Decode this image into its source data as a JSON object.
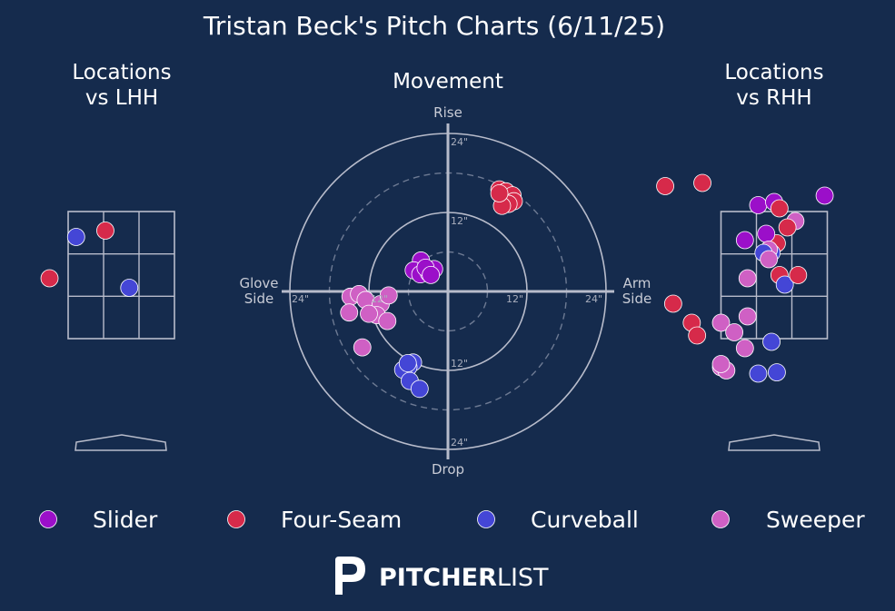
{
  "title": "Tristan Beck's Pitch Charts (6/11/25)",
  "colors": {
    "background": "#152b4d",
    "slider": "#9b0fc9",
    "four_seam": "#d62a4a",
    "curveball": "#4446d6",
    "sweeper": "#cf60c4",
    "line": "#b8bccb"
  },
  "panels": {
    "lhh": {
      "title_line1": "Locations",
      "title_line2": "vs LHH"
    },
    "movement": {
      "title": "Movement"
    },
    "rhh": {
      "title_line1": "Locations",
      "title_line2": "vs RHH"
    }
  },
  "legend": [
    {
      "name": "Slider",
      "color": "#9b0fc9"
    },
    {
      "name": "Four-Seam",
      "color": "#d62a4a"
    },
    {
      "name": "Curveball",
      "color": "#4446d6"
    },
    {
      "name": "Sweeper",
      "color": "#cf60c4"
    }
  ],
  "logo": {
    "bold": "PITCHER",
    "light": "LIST",
    "icon": "p-logo-icon"
  },
  "chart_data": [
    {
      "type": "scatter",
      "name": "Locations vs LHH",
      "title": "Locations vs LHH",
      "xlim": [
        -2.1,
        2.1
      ],
      "ylim": [
        0.3,
        4.75
      ],
      "strike_zone": {
        "x": [
          -1.0,
          1.0
        ],
        "y": [
          1.5,
          3.5
        ]
      },
      "grid": true,
      "points": [
        {
          "pitch": "Four-Seam",
          "x": -0.3,
          "y": 3.2
        },
        {
          "pitch": "Curveball",
          "x": -0.85,
          "y": 3.1
        },
        {
          "pitch": "Four-Seam",
          "x": -1.35,
          "y": 2.45
        },
        {
          "pitch": "Curveball",
          "x": 0.15,
          "y": 2.3
        }
      ]
    },
    {
      "type": "scatter",
      "name": "Movement",
      "title": "Movement",
      "axis_labels": {
        "top": "Rise",
        "bottom": "Drop",
        "left_line1": "Glove",
        "left_line2": "Side",
        "right_line1": "Arm",
        "right_line2": "Side"
      },
      "ring_labels": {
        "top_outer": "24\"",
        "top_inner": "12\"",
        "bottom_inner": "12\"",
        "bottom_outer": "24\"",
        "left_outer": "24\"",
        "left_inner": "12\"",
        "right_inner": "12\"",
        "right_outer": "24\""
      },
      "units": "inches",
      "rings": [
        12,
        24
      ],
      "dashed_rings": [
        6,
        18
      ],
      "points": [
        {
          "pitch": "Four-Seam",
          "x": 7.8,
          "y": 15.5
        },
        {
          "pitch": "Four-Seam",
          "x": 8.8,
          "y": 15.2
        },
        {
          "pitch": "Four-Seam",
          "x": 9.8,
          "y": 14.6
        },
        {
          "pitch": "Four-Seam",
          "x": 10.0,
          "y": 13.7
        },
        {
          "pitch": "Four-Seam",
          "x": 9.2,
          "y": 13.3
        },
        {
          "pitch": "Four-Seam",
          "x": 8.2,
          "y": 13.0
        },
        {
          "pitch": "Four-Seam",
          "x": 7.8,
          "y": 14.9
        },
        {
          "pitch": "Slider",
          "x": -4.1,
          "y": 4.7
        },
        {
          "pitch": "Slider",
          "x": -5.2,
          "y": 3.2
        },
        {
          "pitch": "Slider",
          "x": -4.2,
          "y": 2.6
        },
        {
          "pitch": "Slider",
          "x": -2.9,
          "y": 2.8
        },
        {
          "pitch": "Slider",
          "x": -2.1,
          "y": 3.4
        },
        {
          "pitch": "Slider",
          "x": -3.4,
          "y": 3.6
        },
        {
          "pitch": "Slider",
          "x": -2.6,
          "y": 2.5
        },
        {
          "pitch": "Sweeper",
          "x": -14.8,
          "y": -0.8
        },
        {
          "pitch": "Sweeper",
          "x": -13.5,
          "y": -0.4
        },
        {
          "pitch": "Sweeper",
          "x": -12.5,
          "y": -1.3
        },
        {
          "pitch": "Sweeper",
          "x": -10.2,
          "y": -1.9
        },
        {
          "pitch": "Sweeper",
          "x": -10.8,
          "y": -3.6
        },
        {
          "pitch": "Sweeper",
          "x": -12.0,
          "y": -3.4
        },
        {
          "pitch": "Sweeper",
          "x": -15.0,
          "y": -3.2
        },
        {
          "pitch": "Sweeper",
          "x": -9.2,
          "y": -4.5
        },
        {
          "pitch": "Sweeper",
          "x": -9.0,
          "y": -0.6
        },
        {
          "pitch": "Sweeper",
          "x": -13.0,
          "y": -8.5
        },
        {
          "pitch": "Curveball",
          "x": -5.3,
          "y": -10.8
        },
        {
          "pitch": "Curveball",
          "x": -6.0,
          "y": -11.5
        },
        {
          "pitch": "Curveball",
          "x": -6.8,
          "y": -11.9
        },
        {
          "pitch": "Curveball",
          "x": -5.8,
          "y": -13.6
        },
        {
          "pitch": "Curveball",
          "x": -4.3,
          "y": -14.8
        },
        {
          "pitch": "Curveball",
          "x": -6.1,
          "y": -10.9
        }
      ]
    },
    {
      "type": "scatter",
      "name": "Locations vs RHH",
      "title": "Locations vs RHH",
      "xlim": [
        -2.1,
        2.1
      ],
      "ylim": [
        0.3,
        4.75
      ],
      "strike_zone": {
        "x": [
          -1.0,
          1.0
        ],
        "y": [
          1.5,
          3.5
        ]
      },
      "grid": true,
      "points": [
        {
          "pitch": "Four-Seam",
          "x": -2.05,
          "y": 3.9
        },
        {
          "pitch": "Four-Seam",
          "x": -1.35,
          "y": 3.95
        },
        {
          "pitch": "Slider",
          "x": -0.3,
          "y": 3.6
        },
        {
          "pitch": "Slider",
          "x": 0.0,
          "y": 3.65
        },
        {
          "pitch": "Four-Seam",
          "x": 0.1,
          "y": 3.55
        },
        {
          "pitch": "Slider",
          "x": 0.95,
          "y": 3.75
        },
        {
          "pitch": "Four-Seam",
          "x": 0.05,
          "y": 3.0
        },
        {
          "pitch": "Sweeper",
          "x": 0.4,
          "y": 3.35
        },
        {
          "pitch": "Four-Seam",
          "x": 0.25,
          "y": 3.25
        },
        {
          "pitch": "Slider",
          "x": -0.15,
          "y": 3.15
        },
        {
          "pitch": "Slider",
          "x": -0.55,
          "y": 3.05
        },
        {
          "pitch": "Curveball",
          "x": -0.05,
          "y": 2.85
        },
        {
          "pitch": "Sweeper",
          "x": -0.1,
          "y": 2.9
        },
        {
          "pitch": "Curveball",
          "x": -0.2,
          "y": 2.85
        },
        {
          "pitch": "Sweeper",
          "x": -0.1,
          "y": 2.75
        },
        {
          "pitch": "Sweeper",
          "x": -0.5,
          "y": 2.45
        },
        {
          "pitch": "Four-Seam",
          "x": 0.1,
          "y": 2.5
        },
        {
          "pitch": "Curveball",
          "x": 0.2,
          "y": 2.35
        },
        {
          "pitch": "Four-Seam",
          "x": 0.45,
          "y": 2.5
        },
        {
          "pitch": "Sweeper",
          "x": -0.5,
          "y": 1.85
        },
        {
          "pitch": "Four-Seam",
          "x": -1.9,
          "y": 2.05
        },
        {
          "pitch": "Four-Seam",
          "x": -1.55,
          "y": 1.75
        },
        {
          "pitch": "Sweeper",
          "x": -1.0,
          "y": 1.75
        },
        {
          "pitch": "Sweeper",
          "x": -0.75,
          "y": 1.6
        },
        {
          "pitch": "Four-Seam",
          "x": -1.45,
          "y": 1.55
        },
        {
          "pitch": "Curveball",
          "x": -0.05,
          "y": 1.45
        },
        {
          "pitch": "Sweeper",
          "x": -0.55,
          "y": 1.35
        },
        {
          "pitch": "Sweeper",
          "x": -1.0,
          "y": 1.05
        },
        {
          "pitch": "Sweeper",
          "x": -0.9,
          "y": 1.0
        },
        {
          "pitch": "Curveball",
          "x": -0.3,
          "y": 0.95
        },
        {
          "pitch": "Curveball",
          "x": 0.05,
          "y": 0.97
        },
        {
          "pitch": "Sweeper",
          "x": -1.0,
          "y": 1.1
        }
      ]
    }
  ]
}
